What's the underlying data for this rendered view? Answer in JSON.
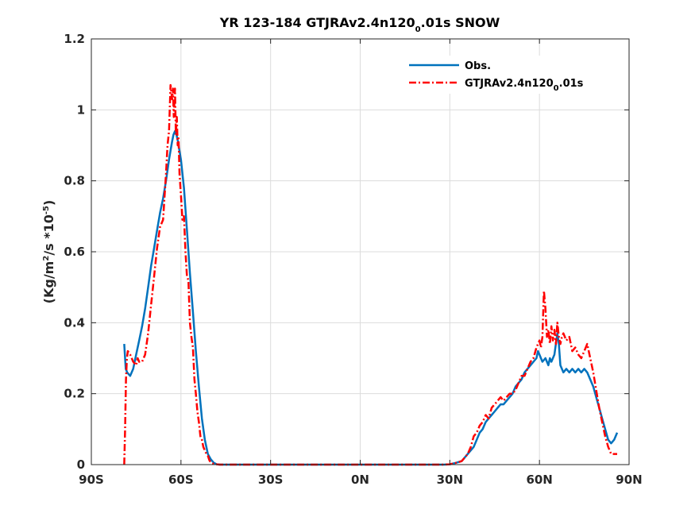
{
  "chart_data": {
    "type": "line",
    "title": {
      "prefix": "YR 123-184 GTJRAv2.4n120",
      "sub": "0",
      "suffix": ".01s SNOW"
    },
    "ylabel": {
      "p1": "(Kg/m",
      "sup1": "2",
      "p2": "/s *10",
      "sup2": "-5",
      "p3": ")"
    },
    "xlim": [
      -90,
      90
    ],
    "ylim": [
      0,
      1.2
    ],
    "xticks": [
      -90,
      -60,
      -30,
      0,
      30,
      60,
      90
    ],
    "xtick_labels": [
      "90S",
      "60S",
      "30S",
      "0N",
      "30N",
      "60N",
      "90N"
    ],
    "yticks": [
      0,
      0.2,
      0.4,
      0.6,
      0.8,
      1.0,
      1.2
    ],
    "ytick_labels": [
      "0",
      "0.2",
      "0.4",
      "0.6",
      "0.8",
      "1",
      "1.2"
    ],
    "grid": true,
    "legend_position": "top-right",
    "series": [
      {
        "name": "Obs.",
        "color": "#0072BD",
        "style": "solid",
        "x": [
          -79,
          -78.5,
          -78,
          -77,
          -76,
          -75,
          -74,
          -73,
          -72,
          -71,
          -70,
          -69,
          -68,
          -67,
          -66,
          -65,
          -64,
          -63,
          -62.5,
          -62,
          -61.5,
          -61,
          -60,
          -59,
          -58,
          -57,
          -56,
          -55,
          -54,
          -53,
          -52,
          -51,
          -50,
          -49,
          -48,
          -47,
          -46,
          -44,
          -40,
          -30,
          -20,
          -10,
          0,
          10,
          20,
          28,
          30,
          32,
          34,
          35,
          36,
          37,
          38,
          39,
          40,
          41,
          42,
          43,
          44,
          45,
          46,
          47,
          48,
          49,
          50,
          51,
          52,
          53,
          54,
          55,
          56,
          57,
          58,
          59,
          59.5,
          60,
          61,
          62,
          63,
          63.5,
          64,
          65,
          66,
          66.5,
          67,
          68,
          69,
          70,
          71,
          72,
          73,
          74,
          75,
          76,
          77,
          78,
          79,
          80,
          81,
          82,
          83,
          84,
          85,
          86
        ],
        "y": [
          0.34,
          0.27,
          0.26,
          0.25,
          0.27,
          0.31,
          0.35,
          0.39,
          0.44,
          0.5,
          0.56,
          0.61,
          0.66,
          0.71,
          0.75,
          0.8,
          0.86,
          0.91,
          0.93,
          0.94,
          0.93,
          0.91,
          0.86,
          0.78,
          0.66,
          0.54,
          0.43,
          0.32,
          0.22,
          0.13,
          0.07,
          0.03,
          0.015,
          0.005,
          0.001,
          0,
          0,
          0,
          0,
          0,
          0,
          0,
          0,
          0,
          0,
          0,
          0.001,
          0.005,
          0.01,
          0.02,
          0.03,
          0.04,
          0.05,
          0.07,
          0.09,
          0.1,
          0.12,
          0.13,
          0.14,
          0.15,
          0.16,
          0.17,
          0.17,
          0.18,
          0.19,
          0.2,
          0.22,
          0.23,
          0.24,
          0.26,
          0.27,
          0.28,
          0.29,
          0.3,
          0.32,
          0.31,
          0.29,
          0.3,
          0.28,
          0.3,
          0.29,
          0.31,
          0.37,
          0.34,
          0.28,
          0.26,
          0.27,
          0.26,
          0.27,
          0.26,
          0.27,
          0.26,
          0.27,
          0.26,
          0.24,
          0.22,
          0.19,
          0.16,
          0.13,
          0.1,
          0.07,
          0.06,
          0.07,
          0.09
        ]
      },
      {
        "name": "GTJRAv2.4n120_0.01s",
        "color": "#FF0000",
        "style": "dashdot",
        "x": [
          -79,
          -78.7,
          -78.4,
          -78.1,
          -77.8,
          -77,
          -76,
          -75,
          -74.5,
          -74,
          -73,
          -72,
          -71,
          -70,
          -69,
          -68,
          -67,
          -66,
          -65,
          -64.5,
          -64,
          -63.5,
          -63,
          -62.7,
          -62.4,
          -62,
          -61.7,
          -61.4,
          -61.1,
          -60.8,
          -60.5,
          -60,
          -59.5,
          -59,
          -58.5,
          -58,
          -57.5,
          -57,
          -56.5,
          -56,
          -55.5,
          -55,
          -54.5,
          -54,
          -53.5,
          -53,
          -52.5,
          -52,
          -51.5,
          -51,
          -50.5,
          -50,
          -49,
          -48,
          -47,
          -46,
          -44,
          -40,
          -30,
          -20,
          -10,
          0,
          10,
          20,
          28,
          30,
          32,
          33,
          34,
          35,
          36,
          37,
          38,
          39,
          40,
          41,
          42,
          43,
          44,
          45,
          46,
          47,
          48,
          49,
          50,
          51,
          52,
          53,
          54,
          55,
          56,
          57,
          58,
          59,
          59.5,
          60,
          60.5,
          61,
          61.5,
          62,
          62.5,
          63,
          63.5,
          64,
          64.5,
          65,
          65.5,
          66,
          66.5,
          67,
          67.5,
          68,
          69,
          70,
          71,
          72,
          73,
          74,
          75,
          76,
          77,
          78,
          79,
          80,
          81,
          82,
          83,
          84,
          85,
          86
        ],
        "y": [
          0.0,
          0.1,
          0.24,
          0.3,
          0.32,
          0.31,
          0.29,
          0.28,
          0.3,
          0.29,
          0.29,
          0.31,
          0.37,
          0.45,
          0.53,
          0.61,
          0.67,
          0.69,
          0.82,
          0.9,
          0.94,
          1.07,
          1.03,
          1.06,
          0.98,
          1.06,
          0.93,
          0.98,
          0.9,
          0.92,
          0.82,
          0.76,
          0.69,
          0.7,
          0.6,
          0.53,
          0.52,
          0.4,
          0.36,
          0.33,
          0.24,
          0.2,
          0.15,
          0.12,
          0.08,
          0.07,
          0.05,
          0.04,
          0.03,
          0.025,
          0.012,
          0.006,
          0.002,
          0.001,
          0,
          0,
          0,
          0,
          0,
          0,
          0,
          0,
          0,
          0,
          0,
          0.001,
          0.005,
          0.007,
          0.01,
          0.02,
          0.03,
          0.05,
          0.08,
          0.09,
          0.11,
          0.12,
          0.14,
          0.13,
          0.16,
          0.17,
          0.18,
          0.19,
          0.18,
          0.19,
          0.2,
          0.2,
          0.21,
          0.23,
          0.25,
          0.25,
          0.27,
          0.29,
          0.3,
          0.33,
          0.34,
          0.35,
          0.33,
          0.36,
          0.49,
          0.44,
          0.36,
          0.38,
          0.34,
          0.39,
          0.35,
          0.38,
          0.34,
          0.4,
          0.36,
          0.34,
          0.36,
          0.37,
          0.35,
          0.36,
          0.32,
          0.33,
          0.31,
          0.3,
          0.32,
          0.34,
          0.3,
          0.26,
          0.21,
          0.16,
          0.12,
          0.08,
          0.05,
          0.03,
          0.03,
          0.03
        ]
      }
    ]
  }
}
